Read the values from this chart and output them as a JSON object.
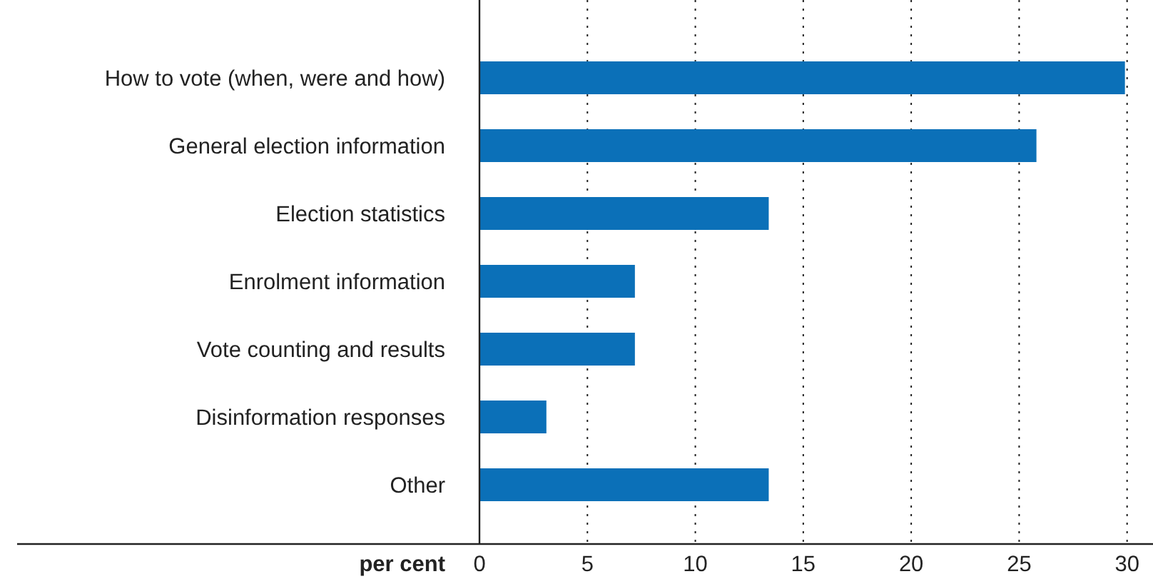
{
  "chart_data": {
    "type": "bar",
    "orientation": "horizontal",
    "xlabel": "per cent",
    "categories": [
      "How to vote (when, were and how)",
      "General election information",
      "Election statistics",
      "Enrolment information",
      "Vote counting and results",
      "Disinformation responses",
      "Other"
    ],
    "values": [
      29.9,
      25.8,
      13.4,
      7.2,
      7.2,
      3.1,
      13.4
    ],
    "color": "#0b70b8",
    "xlim": [
      0,
      31.2
    ],
    "xticks": [
      0,
      5,
      10,
      15,
      20,
      25,
      30
    ],
    "grid": "x"
  }
}
